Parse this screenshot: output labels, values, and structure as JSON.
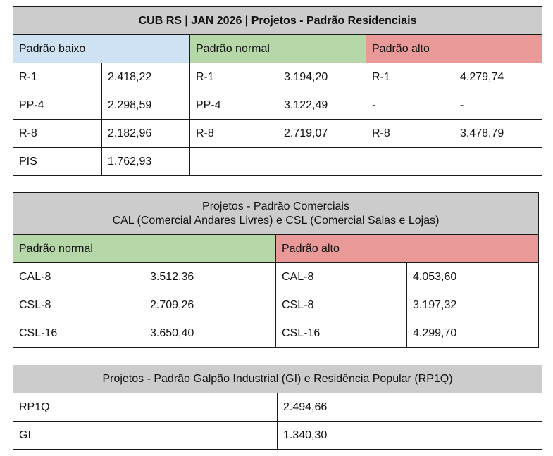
{
  "residential": {
    "title": "CUB RS | JAN 2026 | Projetos - Padrão Residenciais",
    "headers": {
      "low": "Padrão baixo",
      "normal": "Padrão normal",
      "high": "Padrão alto"
    },
    "rows": [
      {
        "low_code": "R-1",
        "low_value": "2.418,22",
        "normal_code": "R-1",
        "normal_value": "3.194,20",
        "high_code": "R-1",
        "high_value": "4.279,74"
      },
      {
        "low_code": "PP-4",
        "low_value": "2.298,59",
        "normal_code": "PP-4",
        "normal_value": "3.122,49",
        "high_code": "-",
        "high_value": "-"
      },
      {
        "low_code": "R-8",
        "low_value": "2.182,96",
        "normal_code": "R-8",
        "normal_value": "2.719,07",
        "high_code": "R-8",
        "high_value": "3.478,79"
      },
      {
        "low_code": "PIS",
        "low_value": "1.762,93"
      }
    ]
  },
  "commercial": {
    "title_line1": "Projetos - Padrão Comerciais",
    "title_line2": "CAL (Comercial Andares Livres) e CSL (Comercial Salas e Lojas)",
    "headers": {
      "normal": "Padrão normal",
      "high": "Padrão alto"
    },
    "rows": [
      {
        "normal_code": "CAL-8",
        "normal_value": "3.512,36",
        "high_code": "CAL-8",
        "high_value": "4.053,60"
      },
      {
        "normal_code": "CSL-8",
        "normal_value": "2.709,26",
        "high_code": "CSL-8",
        "high_value": "3.197,32"
      },
      {
        "normal_code": "CSL-16",
        "normal_value": "3.650,40",
        "high_code": "CSL-16",
        "high_value": "4.299,70"
      }
    ]
  },
  "industrial": {
    "title": "Projetos - Padrão Galpão Industrial (GI) e Residência Popular (RP1Q)",
    "rows": [
      {
        "code": "RP1Q",
        "value": "2.494,66"
      },
      {
        "code": "GI",
        "value": "1.340,30"
      }
    ]
  },
  "colors": {
    "title_bg": "#cccccc",
    "low_bg": "#cfe2f3",
    "normal_bg": "#b6d7a8",
    "high_bg": "#ea9999",
    "border": "#1a1a1a"
  }
}
